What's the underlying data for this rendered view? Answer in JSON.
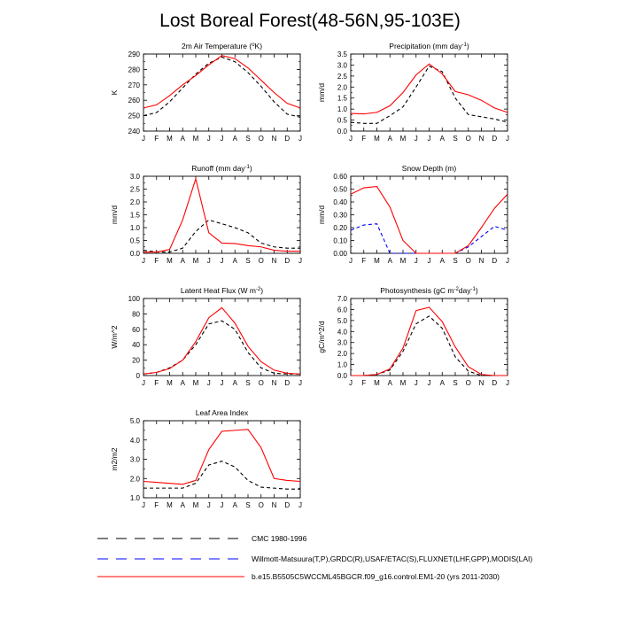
{
  "figure": {
    "title": "Lost Boreal Forest(48-56N,95-103E)"
  },
  "colors": {
    "cmc": "#000000",
    "obs": "#0000ff",
    "model": "#ff0000"
  },
  "legend": {
    "items": [
      {
        "label": "CMC 1980-1996",
        "color": "#000000",
        "dash": "dashed"
      },
      {
        "label": "Willmott-Matsuura(T,P),GRDC(R),USAF/ETAC(S),FLUXNET(LHF,GPP),MODIS(LAI)",
        "color": "#0000ff",
        "dash": "dashed"
      },
      {
        "label": "b.e15.B5505C5WCCML45BGCR.f09_g16.control.EM1-20 (yrs 2011-2030)",
        "color": "#ff0000",
        "dash": "solid"
      }
    ]
  },
  "chart_data": [
    {
      "id": "temperature",
      "type": "line",
      "title": "2m Air Temperature (°K)",
      "title_parts": [
        "2m Air Temperature (",
        "o",
        "K)"
      ],
      "ylabel": "K",
      "ylim": [
        240,
        290
      ],
      "yticks": [
        "240",
        "250",
        "260",
        "270",
        "280",
        "290"
      ],
      "categories": [
        "J",
        "F",
        "M",
        "A",
        "M",
        "J",
        "J",
        "A",
        "S",
        "O",
        "N",
        "D",
        "J"
      ],
      "series": [
        {
          "name": "CMC 1980-1996",
          "color": "#000000",
          "dash": "dashed",
          "values": [
            250,
            252,
            259,
            268,
            277,
            284,
            288,
            285,
            278,
            269,
            259,
            251,
            249
          ]
        },
        {
          "name": "b.e15.B5505C5WCCML45BGCR.f09_g16.control.EM1-20 (yrs 2011-2030)",
          "color": "#ff0000",
          "dash": "solid",
          "values": [
            255,
            257,
            263,
            270,
            276,
            283,
            289,
            287,
            281,
            273,
            265,
            258,
            255
          ]
        }
      ]
    },
    {
      "id": "precipitation",
      "type": "line",
      "title": "Precipitation (mm day-1)",
      "title_parts": [
        "Precipitation (mm day",
        "-1",
        ")"
      ],
      "ylabel": "mm/d",
      "ylim": [
        0,
        3.5
      ],
      "yticks": [
        "0.0",
        "0.5",
        "1.0",
        "1.5",
        "2.0",
        "2.5",
        "3.0",
        "3.5"
      ],
      "categories": [
        "J",
        "F",
        "M",
        "A",
        "M",
        "J",
        "J",
        "A",
        "S",
        "O",
        "N",
        "D",
        "J"
      ],
      "series": [
        {
          "name": "CMC 1980-1996",
          "color": "#000000",
          "dash": "dashed",
          "values": [
            0.4,
            0.35,
            0.35,
            0.7,
            1.1,
            2.0,
            2.95,
            2.7,
            1.5,
            0.75,
            0.65,
            0.55,
            0.4
          ]
        },
        {
          "name": "b.e15.B5505C5WCCML45BGCR.f09_g16.control.EM1-20 (yrs 2011-2030)",
          "color": "#ff0000",
          "dash": "solid",
          "values": [
            0.8,
            0.78,
            0.85,
            1.15,
            1.75,
            2.55,
            3.05,
            2.6,
            1.8,
            1.65,
            1.4,
            1.05,
            0.85
          ]
        }
      ]
    },
    {
      "id": "runoff",
      "type": "line",
      "title": "Runoff (mm day-1)",
      "title_parts": [
        "Runoff (mm day",
        "-1",
        ")"
      ],
      "ylabel": "mm/d",
      "ylim": [
        0,
        3.0
      ],
      "yticks": [
        "0.0",
        "0.5",
        "1.0",
        "1.5",
        "2.0",
        "2.5",
        "3.0"
      ],
      "categories": [
        "J",
        "F",
        "M",
        "A",
        "M",
        "J",
        "J",
        "A",
        "S",
        "O",
        "N",
        "D",
        "J"
      ],
      "series": [
        {
          "name": "CMC 1980-1996",
          "color": "#000000",
          "dash": "dashed",
          "values": [
            0.12,
            0.05,
            0.05,
            0.2,
            0.85,
            1.3,
            1.15,
            1.0,
            0.8,
            0.4,
            0.25,
            0.2,
            0.2
          ]
        },
        {
          "name": "b.e15.B5505C5WCCML45BGCR.f09_g16.control.EM1-20 (yrs 2011-2030)",
          "color": "#ff0000",
          "dash": "solid",
          "values": [
            0.05,
            0.05,
            0.15,
            1.3,
            2.9,
            0.8,
            0.4,
            0.38,
            0.3,
            0.25,
            0.12,
            0.08,
            0.08
          ]
        }
      ]
    },
    {
      "id": "snow-depth",
      "type": "line",
      "title": "Snow Depth (m)",
      "title_parts": [
        "Snow Depth (m)"
      ],
      "ylabel": "mm/d",
      "ylim": [
        0,
        0.6
      ],
      "yticks": [
        "0.00",
        "0.10",
        "0.20",
        "0.30",
        "0.40",
        "0.50",
        "0.60"
      ],
      "categories": [
        "J",
        "F",
        "M",
        "A",
        "M",
        "J",
        "J",
        "A",
        "S",
        "O",
        "N",
        "D",
        "J"
      ],
      "series": [
        {
          "name": "Willmott-Matsuura(T,P),GRDC(R),USAF/ETAC(S),FLUXNET(LHF,GPP),MODIS(LAI)",
          "color": "#0000ff",
          "dash": "dashed",
          "values": [
            0.18,
            0.22,
            0.23,
            0.0,
            0.0,
            0.0,
            0.0,
            0.0,
            0.0,
            0.05,
            0.13,
            0.21,
            0.18
          ]
        },
        {
          "name": "b.e15.B5505C5WCCML45BGCR.f09_g16.control.EM1-20 (yrs 2011-2030)",
          "color": "#ff0000",
          "dash": "solid",
          "values": [
            0.46,
            0.51,
            0.52,
            0.36,
            0.1,
            0.0,
            0.0,
            0.0,
            0.0,
            0.06,
            0.2,
            0.35,
            0.46
          ]
        }
      ]
    },
    {
      "id": "latent-heat",
      "type": "line",
      "title": "Latent Heat Flux (W m-2)",
      "title_parts": [
        "Latent Heat Flux (W m",
        "-2",
        ")"
      ],
      "ylabel": "W/m^2",
      "ylim": [
        0,
        100
      ],
      "yticks": [
        "0",
        "20",
        "40",
        "60",
        "80",
        "100"
      ],
      "categories": [
        "J",
        "F",
        "M",
        "A",
        "M",
        "J",
        "J",
        "A",
        "S",
        "O",
        "N",
        "D",
        "J"
      ],
      "series": [
        {
          "name": "CMC 1980-1996",
          "color": "#000000",
          "dash": "dashed",
          "values": [
            2,
            4,
            10,
            20,
            40,
            67,
            71,
            60,
            30,
            10,
            3,
            2,
            2
          ]
        },
        {
          "name": "b.e15.B5505C5WCCML45BGCR.f09_g16.control.EM1-20 (yrs 2011-2030)",
          "color": "#ff0000",
          "dash": "solid",
          "values": [
            2,
            4,
            9,
            20,
            44,
            75,
            88,
            68,
            38,
            18,
            7,
            3,
            2
          ]
        }
      ]
    },
    {
      "id": "photosynthesis",
      "type": "line",
      "title": "Photosynthesis (gC m-2day-1)",
      "title_parts": [
        "Photosynthesis (gC m",
        "-2",
        "day",
        "-1",
        ")"
      ],
      "ylabel": "gC/m^2/d",
      "ylim": [
        0,
        7.0
      ],
      "yticks": [
        "0.0",
        "1.0",
        "2.0",
        "3.0",
        "4.0",
        "5.0",
        "6.0",
        "7.0"
      ],
      "categories": [
        "J",
        "F",
        "M",
        "A",
        "M",
        "J",
        "J",
        "A",
        "S",
        "O",
        "N",
        "D",
        "J"
      ],
      "series": [
        {
          "name": "CMC 1980-1996",
          "color": "#000000",
          "dash": "dashed",
          "values": [
            0.0,
            0.0,
            0.1,
            0.5,
            2.2,
            4.7,
            5.4,
            4.3,
            1.7,
            0.4,
            0.0,
            0.0,
            0.0
          ]
        },
        {
          "name": "b.e15.B5505C5WCCML45BGCR.f09_g16.control.EM1-20 (yrs 2011-2030)",
          "color": "#ff0000",
          "dash": "solid",
          "values": [
            0.0,
            0.0,
            0.1,
            0.6,
            2.5,
            5.9,
            6.2,
            4.9,
            2.6,
            0.8,
            0.1,
            0.0,
            0.0
          ]
        }
      ]
    },
    {
      "id": "leaf-area-index",
      "type": "line",
      "title": "Leaf Area Index",
      "title_parts": [
        "Leaf Area Index"
      ],
      "ylabel": "m2/m2",
      "ylim": [
        1.0,
        5.0
      ],
      "yticks": [
        "1.0",
        "2.0",
        "3.0",
        "4.0",
        "5.0"
      ],
      "categories": [
        "J",
        "F",
        "M",
        "A",
        "M",
        "J",
        "J",
        "A",
        "S",
        "O",
        "N",
        "D",
        "J"
      ],
      "series": [
        {
          "name": "CMC 1980-1996",
          "color": "#000000",
          "dash": "dashed",
          "values": [
            1.5,
            1.5,
            1.5,
            1.5,
            1.75,
            2.7,
            2.9,
            2.6,
            1.9,
            1.55,
            1.5,
            1.45,
            1.45
          ]
        },
        {
          "name": "b.e15.B5505C5WCCML45BGCR.f09_g16.control.EM1-20 (yrs 2011-2030)",
          "color": "#ff0000",
          "dash": "solid",
          "values": [
            1.85,
            1.8,
            1.75,
            1.7,
            1.9,
            3.5,
            4.45,
            4.5,
            4.55,
            3.6,
            2.0,
            1.9,
            1.85
          ]
        }
      ]
    }
  ]
}
